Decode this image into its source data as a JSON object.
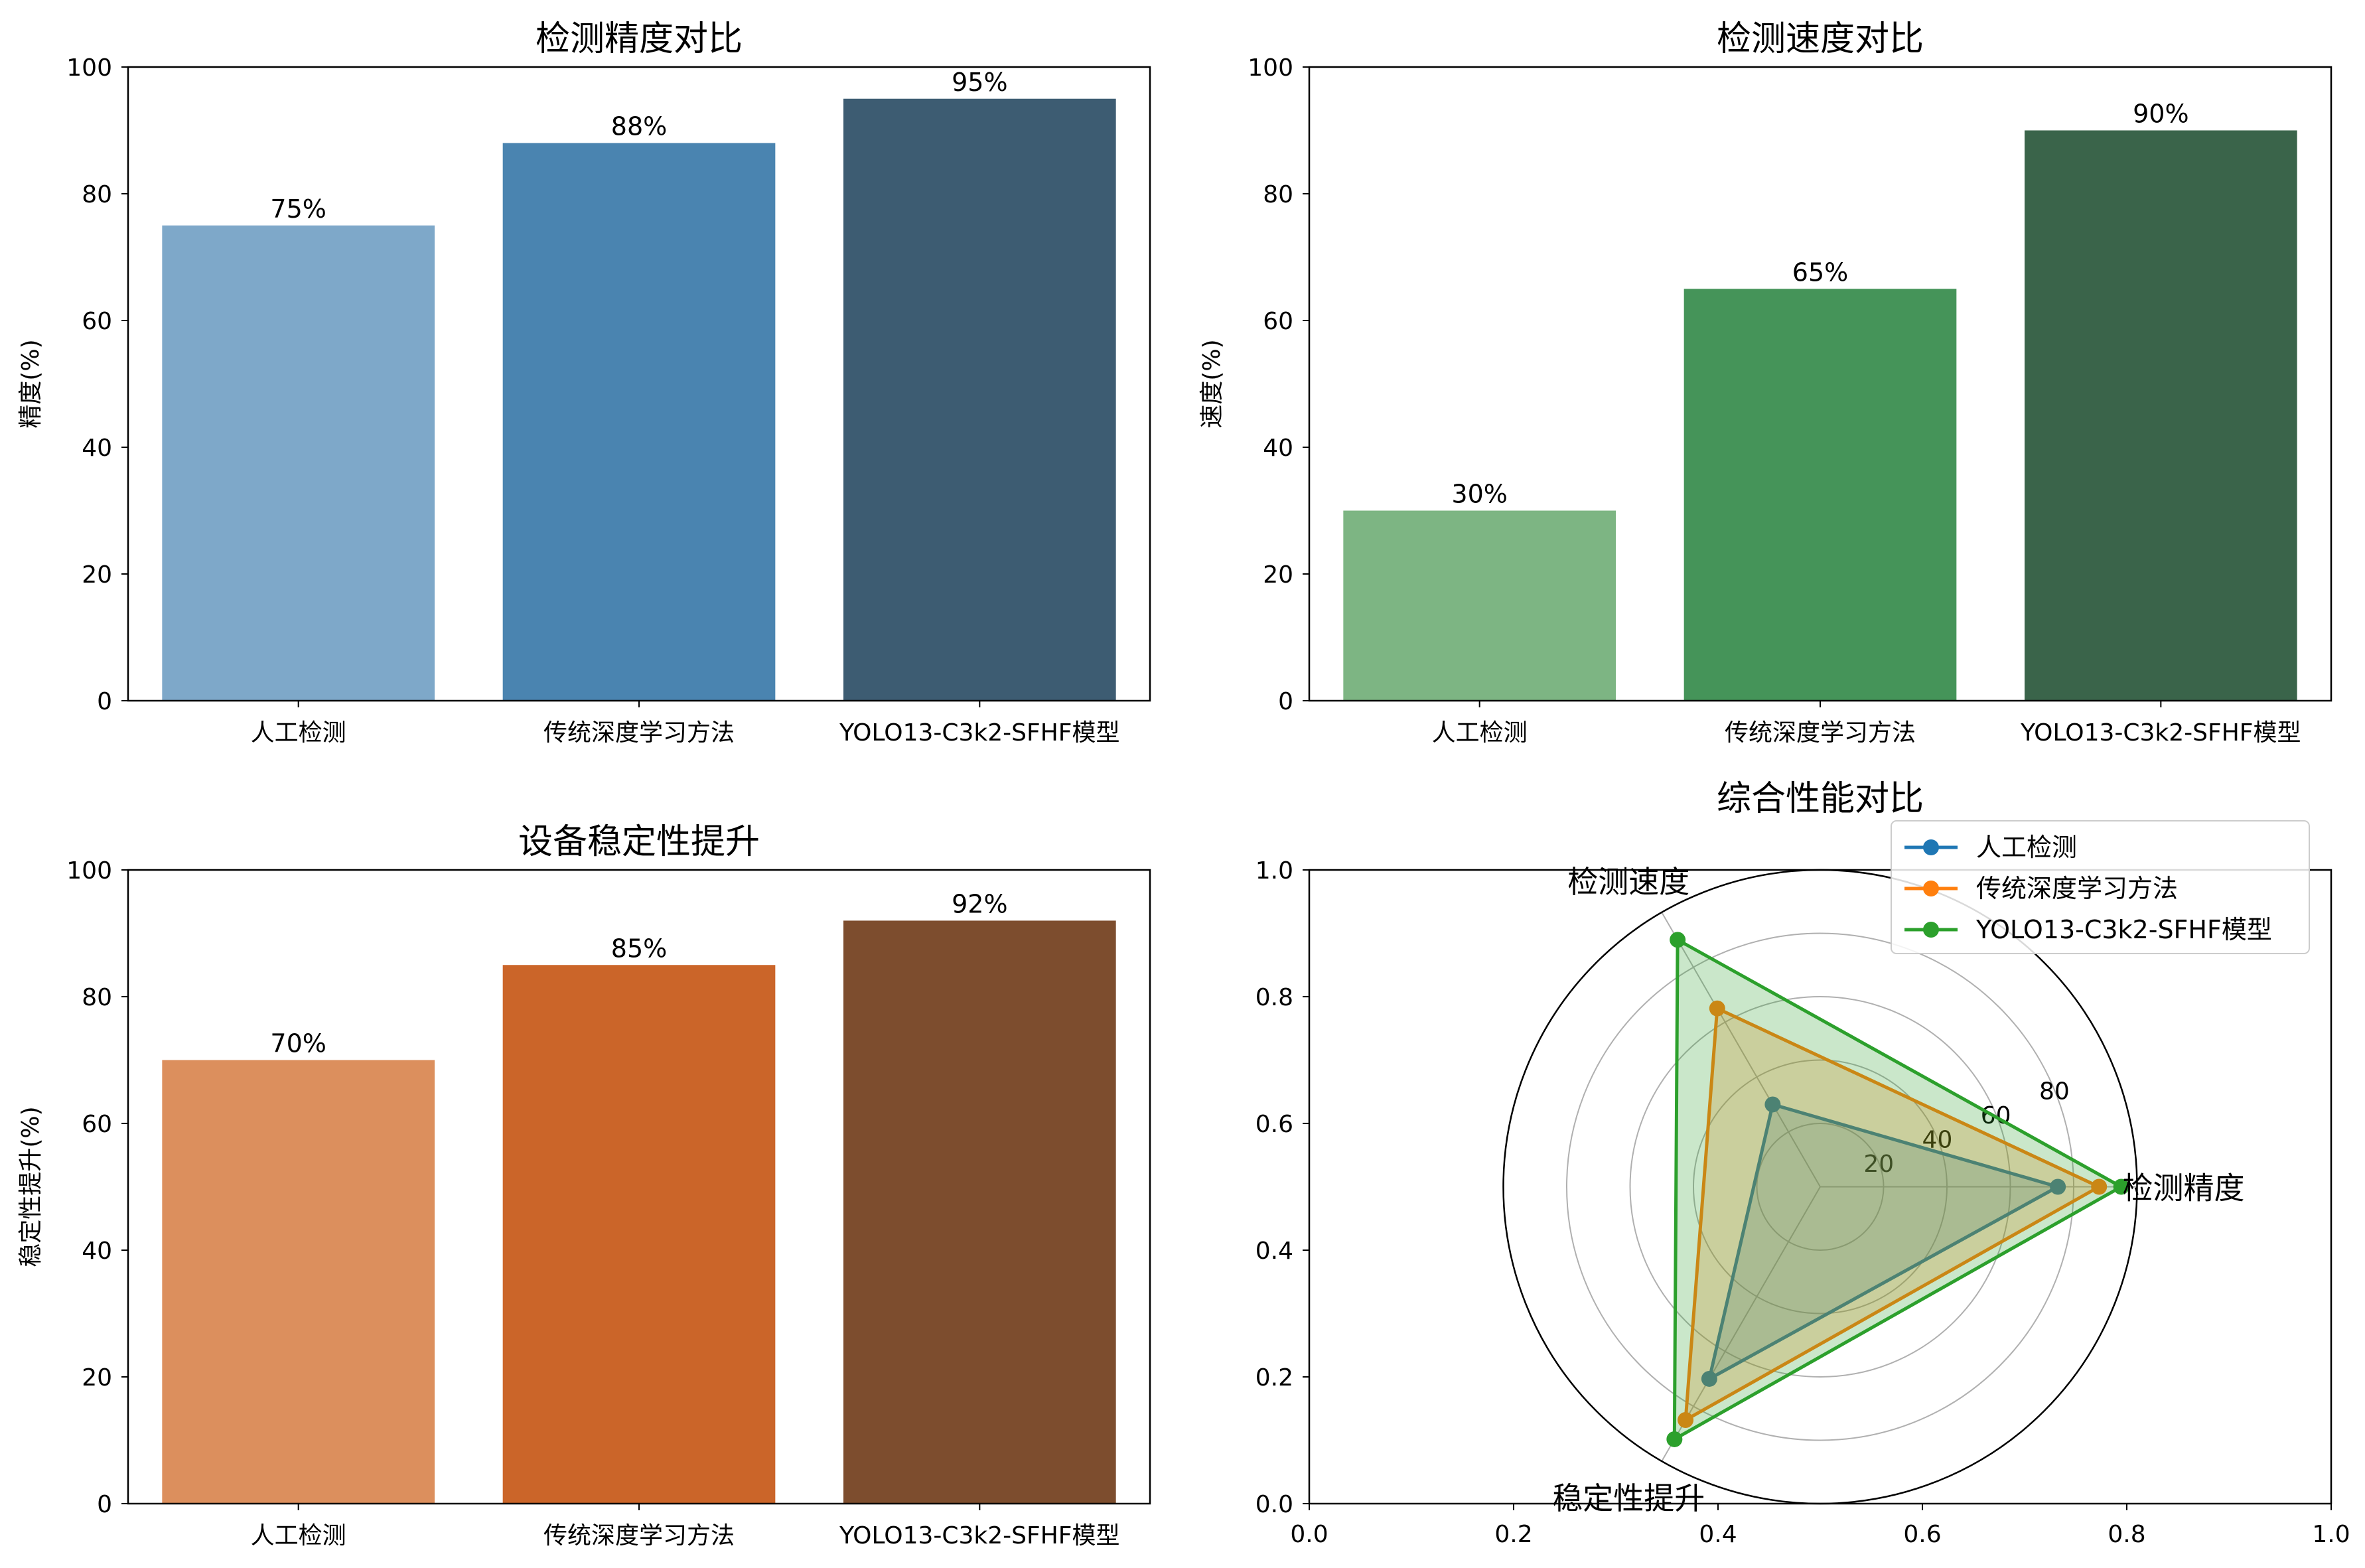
{
  "chart_data": [
    {
      "type": "bar",
      "title": "检测精度对比",
      "ylabel": "精度(%)",
      "xlabel": "",
      "categories": [
        "人工检测",
        "传统深度学习方法",
        "YOLO13-C3k2-SFHF模型"
      ],
      "values": [
        75,
        88,
        95
      ],
      "value_labels": [
        "75%",
        "88%",
        "95%"
      ],
      "colors": [
        "#7ea8c9",
        "#4a84b0",
        "#3d5c72"
      ],
      "ylim": [
        0,
        100
      ],
      "yticks": [
        "0",
        "20",
        "40",
        "60",
        "80",
        "100"
      ]
    },
    {
      "type": "bar",
      "title": "检测速度对比",
      "ylabel": "速度(%)",
      "xlabel": "",
      "categories": [
        "人工检测",
        "传统深度学习方法",
        "YOLO13-C3k2-SFHF模型"
      ],
      "values": [
        30,
        65,
        90
      ],
      "value_labels": [
        "30%",
        "65%",
        "90%"
      ],
      "colors": [
        "#7db583",
        "#459459",
        "#3a644a"
      ],
      "ylim": [
        0,
        100
      ],
      "yticks": [
        "0",
        "20",
        "40",
        "60",
        "80",
        "100"
      ]
    },
    {
      "type": "bar",
      "title": "设备稳定性提升",
      "ylabel": "稳定性提升(%)",
      "xlabel": "",
      "categories": [
        "人工检测",
        "传统深度学习方法",
        "YOLO13-C3k2-SFHF模型"
      ],
      "values": [
        70,
        85,
        92
      ],
      "value_labels": [
        "70%",
        "85%",
        "92%"
      ],
      "colors": [
        "#dc8f5d",
        "#cb6529",
        "#7d4d2e"
      ],
      "ylim": [
        0,
        100
      ],
      "yticks": [
        "0",
        "20",
        "40",
        "60",
        "80",
        "100"
      ]
    },
    {
      "type": "radar",
      "title": "综合性能对比",
      "axes": [
        "检测精度",
        "检测速度",
        "稳定性提升"
      ],
      "rlim": [
        0,
        100
      ],
      "rticks": [
        "20",
        "40",
        "60",
        "80"
      ],
      "series": [
        {
          "name": "人工检测",
          "values": [
            75,
            30,
            70
          ],
          "color": "#1f77b4"
        },
        {
          "name": "传统深度学习方法",
          "values": [
            88,
            65,
            85
          ],
          "color": "#ff7f0e"
        },
        {
          "name": "YOLO13-C3k2-SFHF模型",
          "values": [
            95,
            90,
            92
          ],
          "color": "#2ca02c"
        }
      ],
      "frame_ticks": [
        "0.0",
        "0.2",
        "0.4",
        "0.6",
        "0.8",
        "1.0"
      ],
      "legend": "top-right"
    }
  ]
}
